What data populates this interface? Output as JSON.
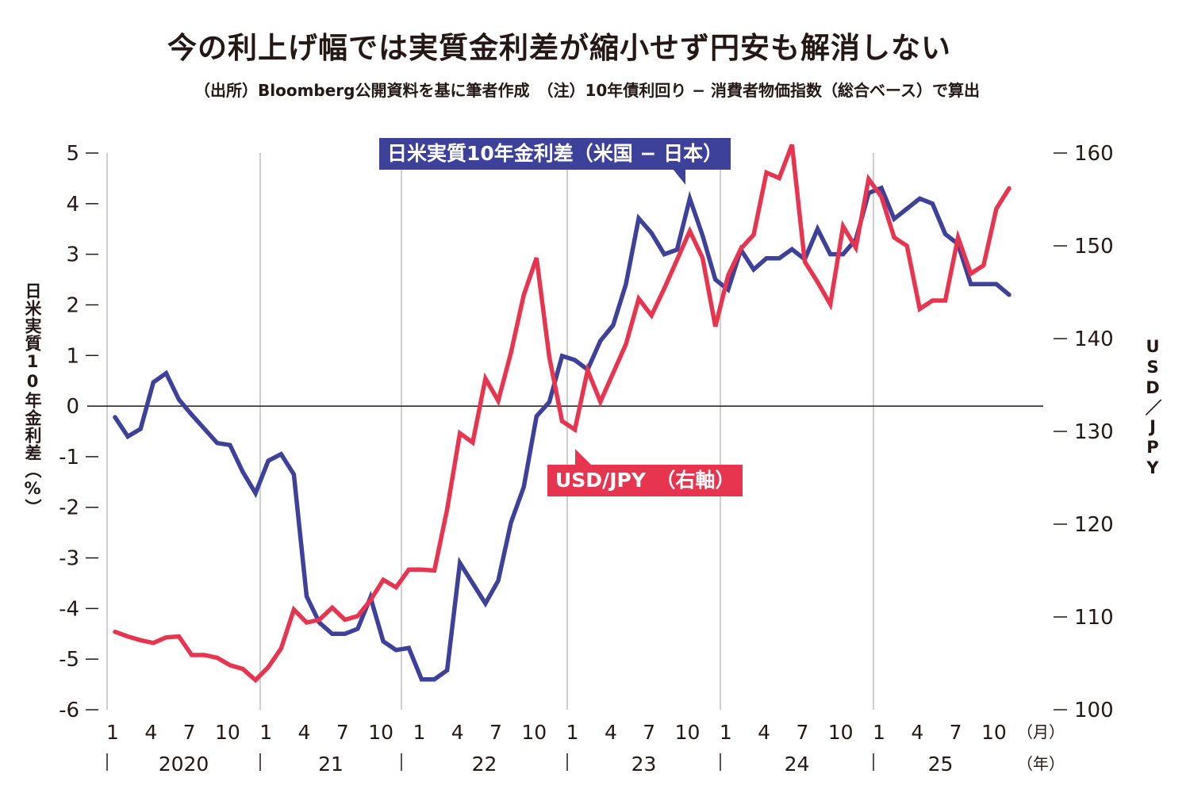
{
  "title": "今の利上げ幅では実質金利差が縮小せず円安も解消しない",
  "subtitle": "（出所）Bloomberg公開資料を基に筆者作成　（注）10年債利回り − 消費者物価指数（総合ベース）で算出",
  "chart_data": {
    "type": "line",
    "title": "今の利上げ幅では実質金利差が縮小せず円安も解消しない",
    "ylabel": "日米実質10年金利差（%）",
    "y2label": "USD／JPY",
    "ylim": [
      -6,
      5
    ],
    "y2lim": [
      100,
      160
    ],
    "yticks": [
      "5",
      "4",
      "3",
      "2",
      "1",
      "0",
      "-1",
      "-2",
      "-3",
      "-4",
      "-5",
      "-6"
    ],
    "y2ticks": [
      "160",
      "150",
      "140",
      "130",
      "120",
      "110",
      "100"
    ],
    "x_start": "2020-01",
    "x_month_ticks": [
      "1",
      "4",
      "7",
      "10",
      "1",
      "4",
      "7",
      "10",
      "1",
      "4",
      "7",
      "10",
      "1",
      "4",
      "7",
      "10",
      "1",
      "4",
      "7",
      "10",
      "1",
      "4",
      "7",
      "10"
    ],
    "x_year_labels": [
      "2020",
      "21",
      "22",
      "23",
      "24",
      "25"
    ],
    "x_month_unit": "（月）",
    "x_year_unit": "（年）",
    "grid": "vertical at year starts",
    "series": [
      {
        "name": "日米実質10年金利差（米国 − 日本）",
        "axis": "left",
        "color": "#3d4199",
        "values": [
          -0.22,
          -0.6,
          -0.45,
          0.47,
          0.65,
          0.13,
          -0.17,
          -0.45,
          -0.73,
          -0.77,
          -1.3,
          -1.72,
          -1.08,
          -0.95,
          -1.35,
          -3.76,
          -4.28,
          -4.5,
          -4.5,
          -4.4,
          -3.78,
          -4.65,
          -4.82,
          -4.78,
          -5.4,
          -5.4,
          -5.22,
          -3.1,
          -3.5,
          -3.9,
          -3.45,
          -2.3,
          -1.6,
          -0.2,
          0.08,
          0.99,
          0.91,
          0.72,
          1.29,
          1.6,
          2.41,
          3.71,
          3.42,
          3.0,
          3.09,
          4.1,
          3.37,
          2.5,
          2.3,
          3.09,
          2.7,
          2.92,
          2.92,
          3.1,
          2.9,
          3.5,
          3.0,
          3.0,
          3.29,
          4.21,
          4.31,
          3.7,
          3.9,
          4.1,
          4.0,
          3.4,
          3.2,
          2.41,
          2.41,
          2.41,
          2.2
        ]
      },
      {
        "name": "USD/JPY　（右軸）",
        "axis": "right",
        "color": "#e8354f",
        "values": [
          108.4,
          107.9,
          107.5,
          107.2,
          107.8,
          107.9,
          105.9,
          105.9,
          105.6,
          104.8,
          104.4,
          103.2,
          104.6,
          106.6,
          110.8,
          109.4,
          109.7,
          111.0,
          109.7,
          110.1,
          111.8,
          114.0,
          113.2,
          115.1,
          115.1,
          115.0,
          121.6,
          129.8,
          128.8,
          135.7,
          133.3,
          138.5,
          144.7,
          148.7,
          138.0,
          131.1,
          130.2,
          136.6,
          133.2,
          136.3,
          139.4,
          144.3,
          142.5,
          145.4,
          148.5,
          151.6,
          148.7,
          141.3,
          146.8,
          149.7,
          151.2,
          157.9,
          157.3,
          160.9,
          148.3,
          146.1,
          143.7,
          152.1,
          149.8,
          157.2,
          155.3,
          150.9,
          150.0,
          143.2,
          144.1,
          144.1,
          150.9,
          147.0,
          147.9,
          154.0,
          156.2
        ]
      }
    ]
  },
  "callouts": {
    "blue": "日米実質10年金利差（米国 − 日本）",
    "red": "USD/JPY　（右軸）"
  }
}
